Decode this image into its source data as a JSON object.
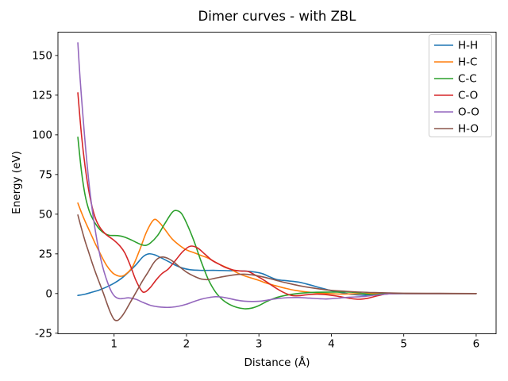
{
  "chart_data": {
    "type": "line",
    "title": "Dimer curves - with ZBL",
    "xlabel": "Distance (Å)",
    "ylabel": "Energy (eV)",
    "xlim": [
      0.225,
      6.275
    ],
    "ylim": [
      -25.35,
      164.7
    ],
    "xticks": [
      1,
      2,
      3,
      4,
      5,
      6
    ],
    "yticks": [
      -25,
      0,
      25,
      50,
      75,
      100,
      125,
      150
    ],
    "grid": false,
    "legend_position": "upper right",
    "background_color": "#ffffff",
    "spine_color": "#000000",
    "legend_edge_color": "#cccccc",
    "series": [
      {
        "name": "H-H",
        "color": "#1f77b4",
        "points": [
          [
            0.5,
            -1.2
          ],
          [
            0.6,
            -0.4
          ],
          [
            0.7,
            0.9
          ],
          [
            0.8,
            2.3
          ],
          [
            0.9,
            4.2
          ],
          [
            1.0,
            6.5
          ],
          [
            1.1,
            9.5
          ],
          [
            1.2,
            13.5
          ],
          [
            1.3,
            18.0
          ],
          [
            1.4,
            23.2
          ],
          [
            1.48,
            25.0
          ],
          [
            1.56,
            24.4
          ],
          [
            1.65,
            22.5
          ],
          [
            1.75,
            20.2
          ],
          [
            1.85,
            17.8
          ],
          [
            1.95,
            16.0
          ],
          [
            2.05,
            15.0
          ],
          [
            2.2,
            14.6
          ],
          [
            2.4,
            14.6
          ],
          [
            2.6,
            14.4
          ],
          [
            2.8,
            14.2
          ],
          [
            2.95,
            13.5
          ],
          [
            3.05,
            12.5
          ],
          [
            3.15,
            10.5
          ],
          [
            3.25,
            8.8
          ],
          [
            3.4,
            8.0
          ],
          [
            3.55,
            7.2
          ],
          [
            3.7,
            5.5
          ],
          [
            3.85,
            3.6
          ],
          [
            4.0,
            1.8
          ],
          [
            4.15,
            0.5
          ],
          [
            4.3,
            -0.6
          ],
          [
            4.45,
            -1.0
          ],
          [
            4.6,
            -0.4
          ],
          [
            4.75,
            -0.1
          ],
          [
            5.0,
            0.0
          ],
          [
            5.5,
            0.0
          ],
          [
            6.0,
            0.0
          ]
        ]
      },
      {
        "name": "H-C",
        "color": "#ff7f0e",
        "points": [
          [
            0.5,
            57.0
          ],
          [
            0.55,
            51.0
          ],
          [
            0.6,
            45.5
          ],
          [
            0.65,
            40.5
          ],
          [
            0.7,
            35.5
          ],
          [
            0.75,
            30.5
          ],
          [
            0.8,
            26.0
          ],
          [
            0.85,
            21.5
          ],
          [
            0.9,
            17.5
          ],
          [
            0.95,
            14.5
          ],
          [
            1.0,
            12.3
          ],
          [
            1.08,
            10.9
          ],
          [
            1.15,
            11.8
          ],
          [
            1.25,
            16.5
          ],
          [
            1.35,
            27.0
          ],
          [
            1.45,
            39.0
          ],
          [
            1.55,
            46.5
          ],
          [
            1.63,
            44.5
          ],
          [
            1.7,
            40.5
          ],
          [
            1.8,
            34.5
          ],
          [
            1.9,
            30.5
          ],
          [
            2.0,
            27.5
          ],
          [
            2.1,
            25.8
          ],
          [
            2.2,
            24.0
          ],
          [
            2.3,
            22.3
          ],
          [
            2.45,
            18.5
          ],
          [
            2.6,
            15.5
          ],
          [
            2.75,
            12.0
          ],
          [
            2.9,
            9.7
          ],
          [
            3.0,
            8.3
          ],
          [
            3.1,
            6.6
          ],
          [
            3.2,
            5.3
          ],
          [
            3.35,
            3.5
          ],
          [
            3.5,
            2.0
          ],
          [
            3.7,
            0.8
          ],
          [
            3.9,
            0.1
          ],
          [
            4.1,
            -0.3
          ],
          [
            4.3,
            -0.2
          ],
          [
            4.5,
            0.0
          ],
          [
            5.0,
            0.0
          ],
          [
            6.0,
            0.0
          ]
        ]
      },
      {
        "name": "C-C",
        "color": "#2ca02c",
        "points": [
          [
            0.5,
            98.5
          ],
          [
            0.55,
            77.0
          ],
          [
            0.6,
            62.0
          ],
          [
            0.65,
            53.0
          ],
          [
            0.7,
            47.5
          ],
          [
            0.75,
            43.5
          ],
          [
            0.8,
            40.5
          ],
          [
            0.85,
            38.5
          ],
          [
            0.9,
            37.2
          ],
          [
            0.95,
            36.6
          ],
          [
            1.05,
            36.5
          ],
          [
            1.15,
            35.5
          ],
          [
            1.25,
            33.5
          ],
          [
            1.35,
            31.3
          ],
          [
            1.43,
            30.3
          ],
          [
            1.5,
            31.8
          ],
          [
            1.6,
            36.5
          ],
          [
            1.7,
            44.0
          ],
          [
            1.8,
            51.0
          ],
          [
            1.86,
            52.3
          ],
          [
            1.93,
            50.5
          ],
          [
            2.0,
            44.5
          ],
          [
            2.1,
            33.5
          ],
          [
            2.2,
            20.5
          ],
          [
            2.3,
            9.0
          ],
          [
            2.4,
            1.0
          ],
          [
            2.5,
            -4.0
          ],
          [
            2.6,
            -7.0
          ],
          [
            2.7,
            -8.8
          ],
          [
            2.8,
            -9.6
          ],
          [
            2.9,
            -9.2
          ],
          [
            3.0,
            -7.6
          ],
          [
            3.1,
            -5.2
          ],
          [
            3.2,
            -3.2
          ],
          [
            3.3,
            -1.8
          ],
          [
            3.45,
            -0.5
          ],
          [
            3.6,
            0.3
          ],
          [
            3.8,
            0.8
          ],
          [
            4.0,
            0.9
          ],
          [
            4.2,
            1.0
          ],
          [
            4.35,
            0.6
          ],
          [
            4.5,
            -0.4
          ],
          [
            4.62,
            -0.6
          ],
          [
            4.75,
            -0.1
          ],
          [
            5.0,
            0.0
          ],
          [
            6.0,
            0.0
          ]
        ]
      },
      {
        "name": "C-O",
        "color": "#d62728",
        "points": [
          [
            0.5,
            126.5
          ],
          [
            0.55,
            100.0
          ],
          [
            0.6,
            80.0
          ],
          [
            0.65,
            65.0
          ],
          [
            0.7,
            54.0
          ],
          [
            0.75,
            46.5
          ],
          [
            0.8,
            42.0
          ],
          [
            0.85,
            39.0
          ],
          [
            0.9,
            36.8
          ],
          [
            1.0,
            33.5
          ],
          [
            1.08,
            30.0
          ],
          [
            1.15,
            25.5
          ],
          [
            1.23,
            17.0
          ],
          [
            1.3,
            8.5
          ],
          [
            1.38,
            1.8
          ],
          [
            1.43,
            1.0
          ],
          [
            1.5,
            3.8
          ],
          [
            1.58,
            8.5
          ],
          [
            1.66,
            12.5
          ],
          [
            1.75,
            15.5
          ],
          [
            1.85,
            21.0
          ],
          [
            1.95,
            26.5
          ],
          [
            2.05,
            29.8
          ],
          [
            2.15,
            28.8
          ],
          [
            2.25,
            25.0
          ],
          [
            2.35,
            21.0
          ],
          [
            2.45,
            18.5
          ],
          [
            2.55,
            16.2
          ],
          [
            2.65,
            14.8
          ],
          [
            2.75,
            14.2
          ],
          [
            2.85,
            13.9
          ],
          [
            2.95,
            11.6
          ],
          [
            3.05,
            9.0
          ],
          [
            3.15,
            6.0
          ],
          [
            3.25,
            3.0
          ],
          [
            3.35,
            0.5
          ],
          [
            3.45,
            -1.2
          ],
          [
            3.55,
            -1.4
          ],
          [
            3.65,
            -0.8
          ],
          [
            3.8,
            -0.4
          ],
          [
            3.95,
            -0.8
          ],
          [
            4.1,
            -1.8
          ],
          [
            4.25,
            -3.0
          ],
          [
            4.38,
            -3.6
          ],
          [
            4.5,
            -3.0
          ],
          [
            4.62,
            -1.6
          ],
          [
            4.75,
            -0.4
          ],
          [
            4.9,
            0.0
          ],
          [
            5.2,
            0.0
          ],
          [
            6.0,
            0.0
          ]
        ]
      },
      {
        "name": "O-O",
        "color": "#9467bd",
        "points": [
          [
            0.5,
            158.0
          ],
          [
            0.53,
            136.0
          ],
          [
            0.57,
            112.0
          ],
          [
            0.61,
            90.0
          ],
          [
            0.66,
            67.0
          ],
          [
            0.71,
            49.0
          ],
          [
            0.76,
            34.5
          ],
          [
            0.81,
            23.0
          ],
          [
            0.86,
            14.0
          ],
          [
            0.91,
            7.0
          ],
          [
            0.96,
            1.5
          ],
          [
            1.01,
            -1.8
          ],
          [
            1.07,
            -3.2
          ],
          [
            1.13,
            -3.1
          ],
          [
            1.2,
            -2.7
          ],
          [
            1.3,
            -3.6
          ],
          [
            1.4,
            -5.6
          ],
          [
            1.5,
            -7.4
          ],
          [
            1.6,
            -8.3
          ],
          [
            1.7,
            -8.7
          ],
          [
            1.8,
            -8.6
          ],
          [
            1.9,
            -7.9
          ],
          [
            2.0,
            -6.7
          ],
          [
            2.1,
            -5.1
          ],
          [
            2.2,
            -3.6
          ],
          [
            2.3,
            -2.6
          ],
          [
            2.4,
            -2.0
          ],
          [
            2.5,
            -2.3
          ],
          [
            2.6,
            -3.2
          ],
          [
            2.7,
            -4.2
          ],
          [
            2.8,
            -4.8
          ],
          [
            2.9,
            -5.0
          ],
          [
            3.0,
            -4.9
          ],
          [
            3.1,
            -4.3
          ],
          [
            3.25,
            -3.2
          ],
          [
            3.4,
            -2.6
          ],
          [
            3.55,
            -2.5
          ],
          [
            3.7,
            -2.9
          ],
          [
            3.85,
            -3.3
          ],
          [
            3.95,
            -3.4
          ],
          [
            4.1,
            -2.9
          ],
          [
            4.25,
            -2.3
          ],
          [
            4.4,
            -2.0
          ],
          [
            4.55,
            -1.3
          ],
          [
            4.7,
            -0.6
          ],
          [
            4.85,
            -0.1
          ],
          [
            5.1,
            0.0
          ],
          [
            6.0,
            0.0
          ]
        ]
      },
      {
        "name": "H-O",
        "color": "#8c564b",
        "points": [
          [
            0.5,
            49.5
          ],
          [
            0.55,
            41.0
          ],
          [
            0.6,
            33.0
          ],
          [
            0.65,
            26.0
          ],
          [
            0.7,
            19.0
          ],
          [
            0.75,
            12.5
          ],
          [
            0.8,
            6.5
          ],
          [
            0.85,
            0.5
          ],
          [
            0.9,
            -6.0
          ],
          [
            0.95,
            -12.0
          ],
          [
            1.0,
            -16.3
          ],
          [
            1.05,
            -16.9
          ],
          [
            1.1,
            -14.8
          ],
          [
            1.15,
            -11.5
          ],
          [
            1.2,
            -7.5
          ],
          [
            1.25,
            -3.5
          ],
          [
            1.3,
            0.5
          ],
          [
            1.35,
            4.5
          ],
          [
            1.4,
            8.5
          ],
          [
            1.47,
            13.5
          ],
          [
            1.55,
            19.5
          ],
          [
            1.62,
            22.5
          ],
          [
            1.68,
            23.0
          ],
          [
            1.75,
            22.0
          ],
          [
            1.82,
            20.0
          ],
          [
            1.9,
            17.0
          ],
          [
            2.0,
            13.5
          ],
          [
            2.1,
            11.0
          ],
          [
            2.2,
            9.2
          ],
          [
            2.3,
            8.8
          ],
          [
            2.4,
            9.7
          ],
          [
            2.55,
            11.0
          ],
          [
            2.7,
            12.0
          ],
          [
            2.8,
            12.2
          ],
          [
            2.9,
            11.8
          ],
          [
            3.0,
            11.0
          ],
          [
            3.1,
            10.0
          ],
          [
            3.25,
            8.2
          ],
          [
            3.4,
            6.5
          ],
          [
            3.55,
            5.0
          ],
          [
            3.7,
            3.8
          ],
          [
            3.85,
            2.8
          ],
          [
            4.0,
            2.0
          ],
          [
            4.2,
            1.4
          ],
          [
            4.4,
            0.9
          ],
          [
            4.6,
            0.6
          ],
          [
            4.8,
            0.4
          ],
          [
            5.0,
            0.2
          ],
          [
            5.5,
            0.1
          ],
          [
            6.0,
            0.0
          ]
        ]
      }
    ]
  }
}
